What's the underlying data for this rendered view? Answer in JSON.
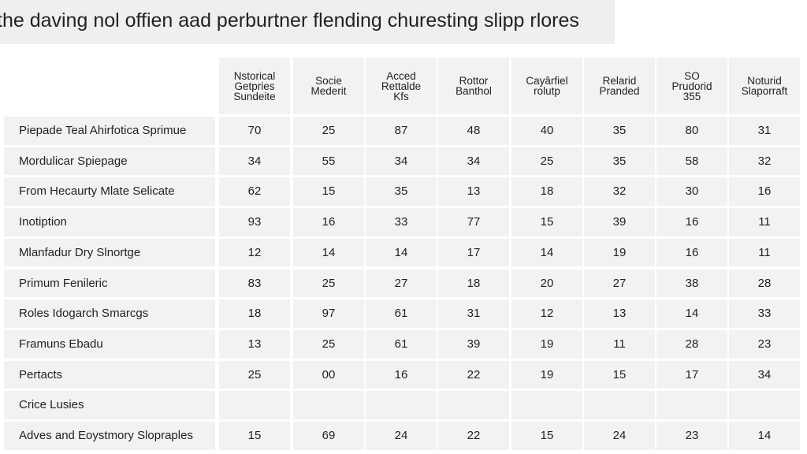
{
  "title": "the daving nol offien aad perburtner flending churesting slipp rlores",
  "table": {
    "headers": [
      [
        "Nstorical",
        "Getpries",
        "Sundeite"
      ],
      [
        "Socie",
        "Mederit"
      ],
      [
        "Acced",
        "Rettalde",
        "Kfs"
      ],
      [
        "Rottor",
        "Banthol"
      ],
      [
        "Cayârfiel",
        "rolutp"
      ],
      [
        "Relarid",
        "Pranded"
      ],
      [
        "SO",
        "Prudorid",
        "355"
      ],
      [
        "Noturid",
        "Slaporraft"
      ]
    ],
    "rows": [
      {
        "label": "Piepade Teal Ahirfotica Sprimue",
        "cells": [
          70,
          25,
          87,
          48,
          40,
          35,
          80,
          31
        ]
      },
      {
        "label": "Mordulicar Spiepage",
        "cells": [
          34,
          55,
          34,
          34,
          25,
          35,
          58,
          32
        ]
      },
      {
        "label": "From Hecaurty Mlate Selicate",
        "cells": [
          62,
          15,
          35,
          13,
          18,
          32,
          30,
          16
        ]
      },
      {
        "label": "Inotiption",
        "cells": [
          93,
          16,
          33,
          77,
          15,
          39,
          16,
          11
        ]
      },
      {
        "label": "Mlanfadur Dry Slnortge",
        "cells": [
          12,
          14,
          14,
          17,
          14,
          19,
          16,
          11
        ]
      },
      {
        "label": "Primum Fenileric",
        "cells": [
          83,
          25,
          27,
          18,
          20,
          27,
          38,
          28
        ]
      },
      {
        "label": "Roles Idogarch Smarcgs",
        "cells": [
          18,
          97,
          61,
          31,
          12,
          13,
          14,
          33
        ]
      },
      {
        "label": "Framuns Ebadu",
        "cells": [
          13,
          25,
          61,
          39,
          19,
          11,
          28,
          23
        ]
      },
      {
        "label": "Pertacts",
        "cells": [
          25,
          "00",
          16,
          22,
          19,
          15,
          17,
          34
        ]
      },
      {
        "label": "Crice Lusies",
        "cells": []
      },
      {
        "label": "Adves and Eoystmory Slopraples",
        "cells": [
          15,
          69,
          24,
          22,
          15,
          24,
          23,
          14
        ]
      }
    ]
  }
}
